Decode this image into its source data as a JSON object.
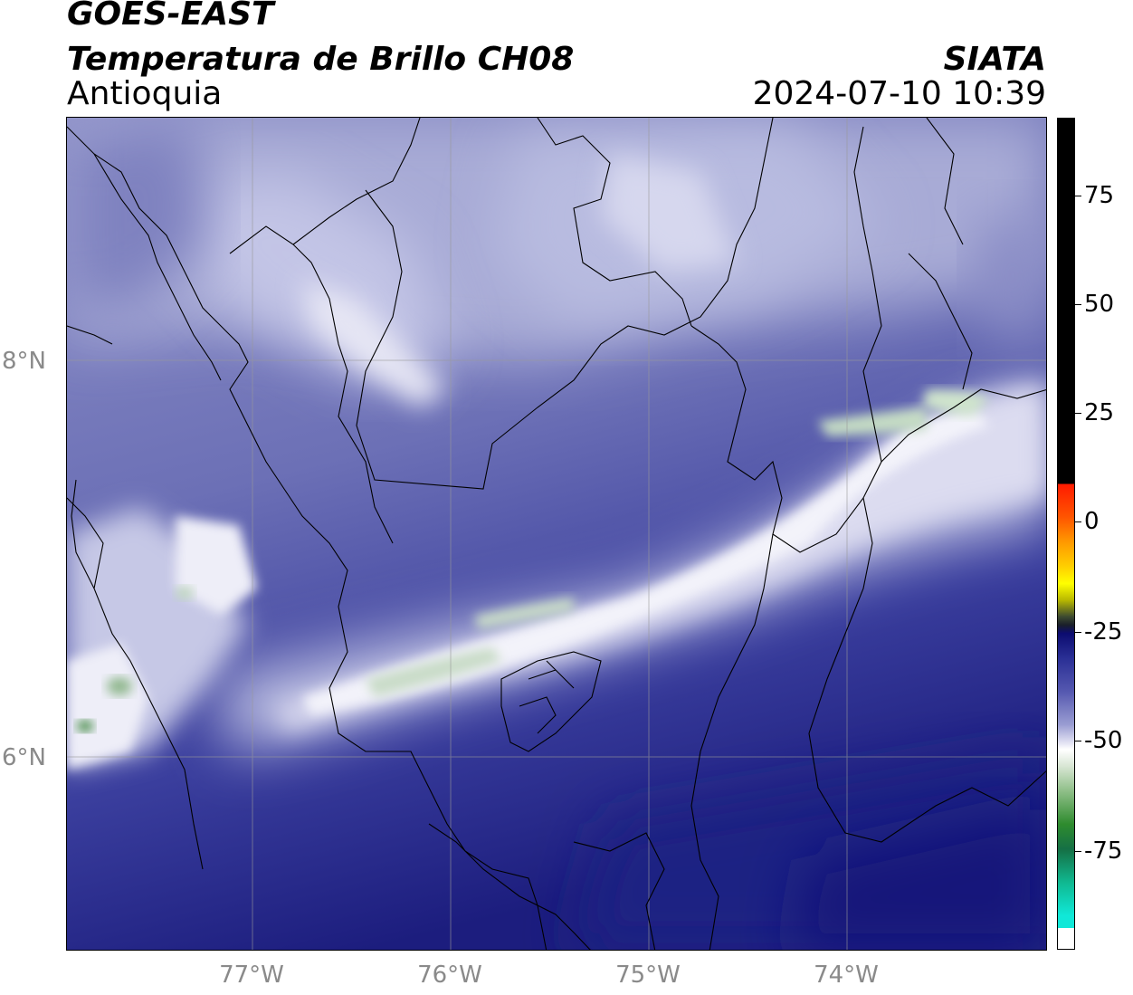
{
  "header": {
    "satellite": "GOES-EAST",
    "product": "Temperatura de Brillo CH08",
    "region": "Antioquia",
    "organization": "SIATA",
    "datetime": "2024-07-10 10:39"
  },
  "map": {
    "lat_labels": [
      "8°N",
      "6°N"
    ],
    "lon_labels": [
      "77°W",
      "76°W",
      "75°W",
      "74°W"
    ]
  },
  "colorbar": {
    "ticks": [
      "75",
      "50",
      "25",
      "0",
      "-25",
      "-50",
      "-75"
    ],
    "colors": {
      "top_black": "#000000",
      "red": "#ff1a00",
      "orange": "#ff8c00",
      "yellow": "#ffff00",
      "dark": "#1f2a20",
      "navy": "#10106e",
      "blue": "#3a3ea0",
      "lavender": "#a3a6d3",
      "white": "#ffffff",
      "green": "#2e8b2e",
      "cyan": "#10e8d8"
    }
  }
}
